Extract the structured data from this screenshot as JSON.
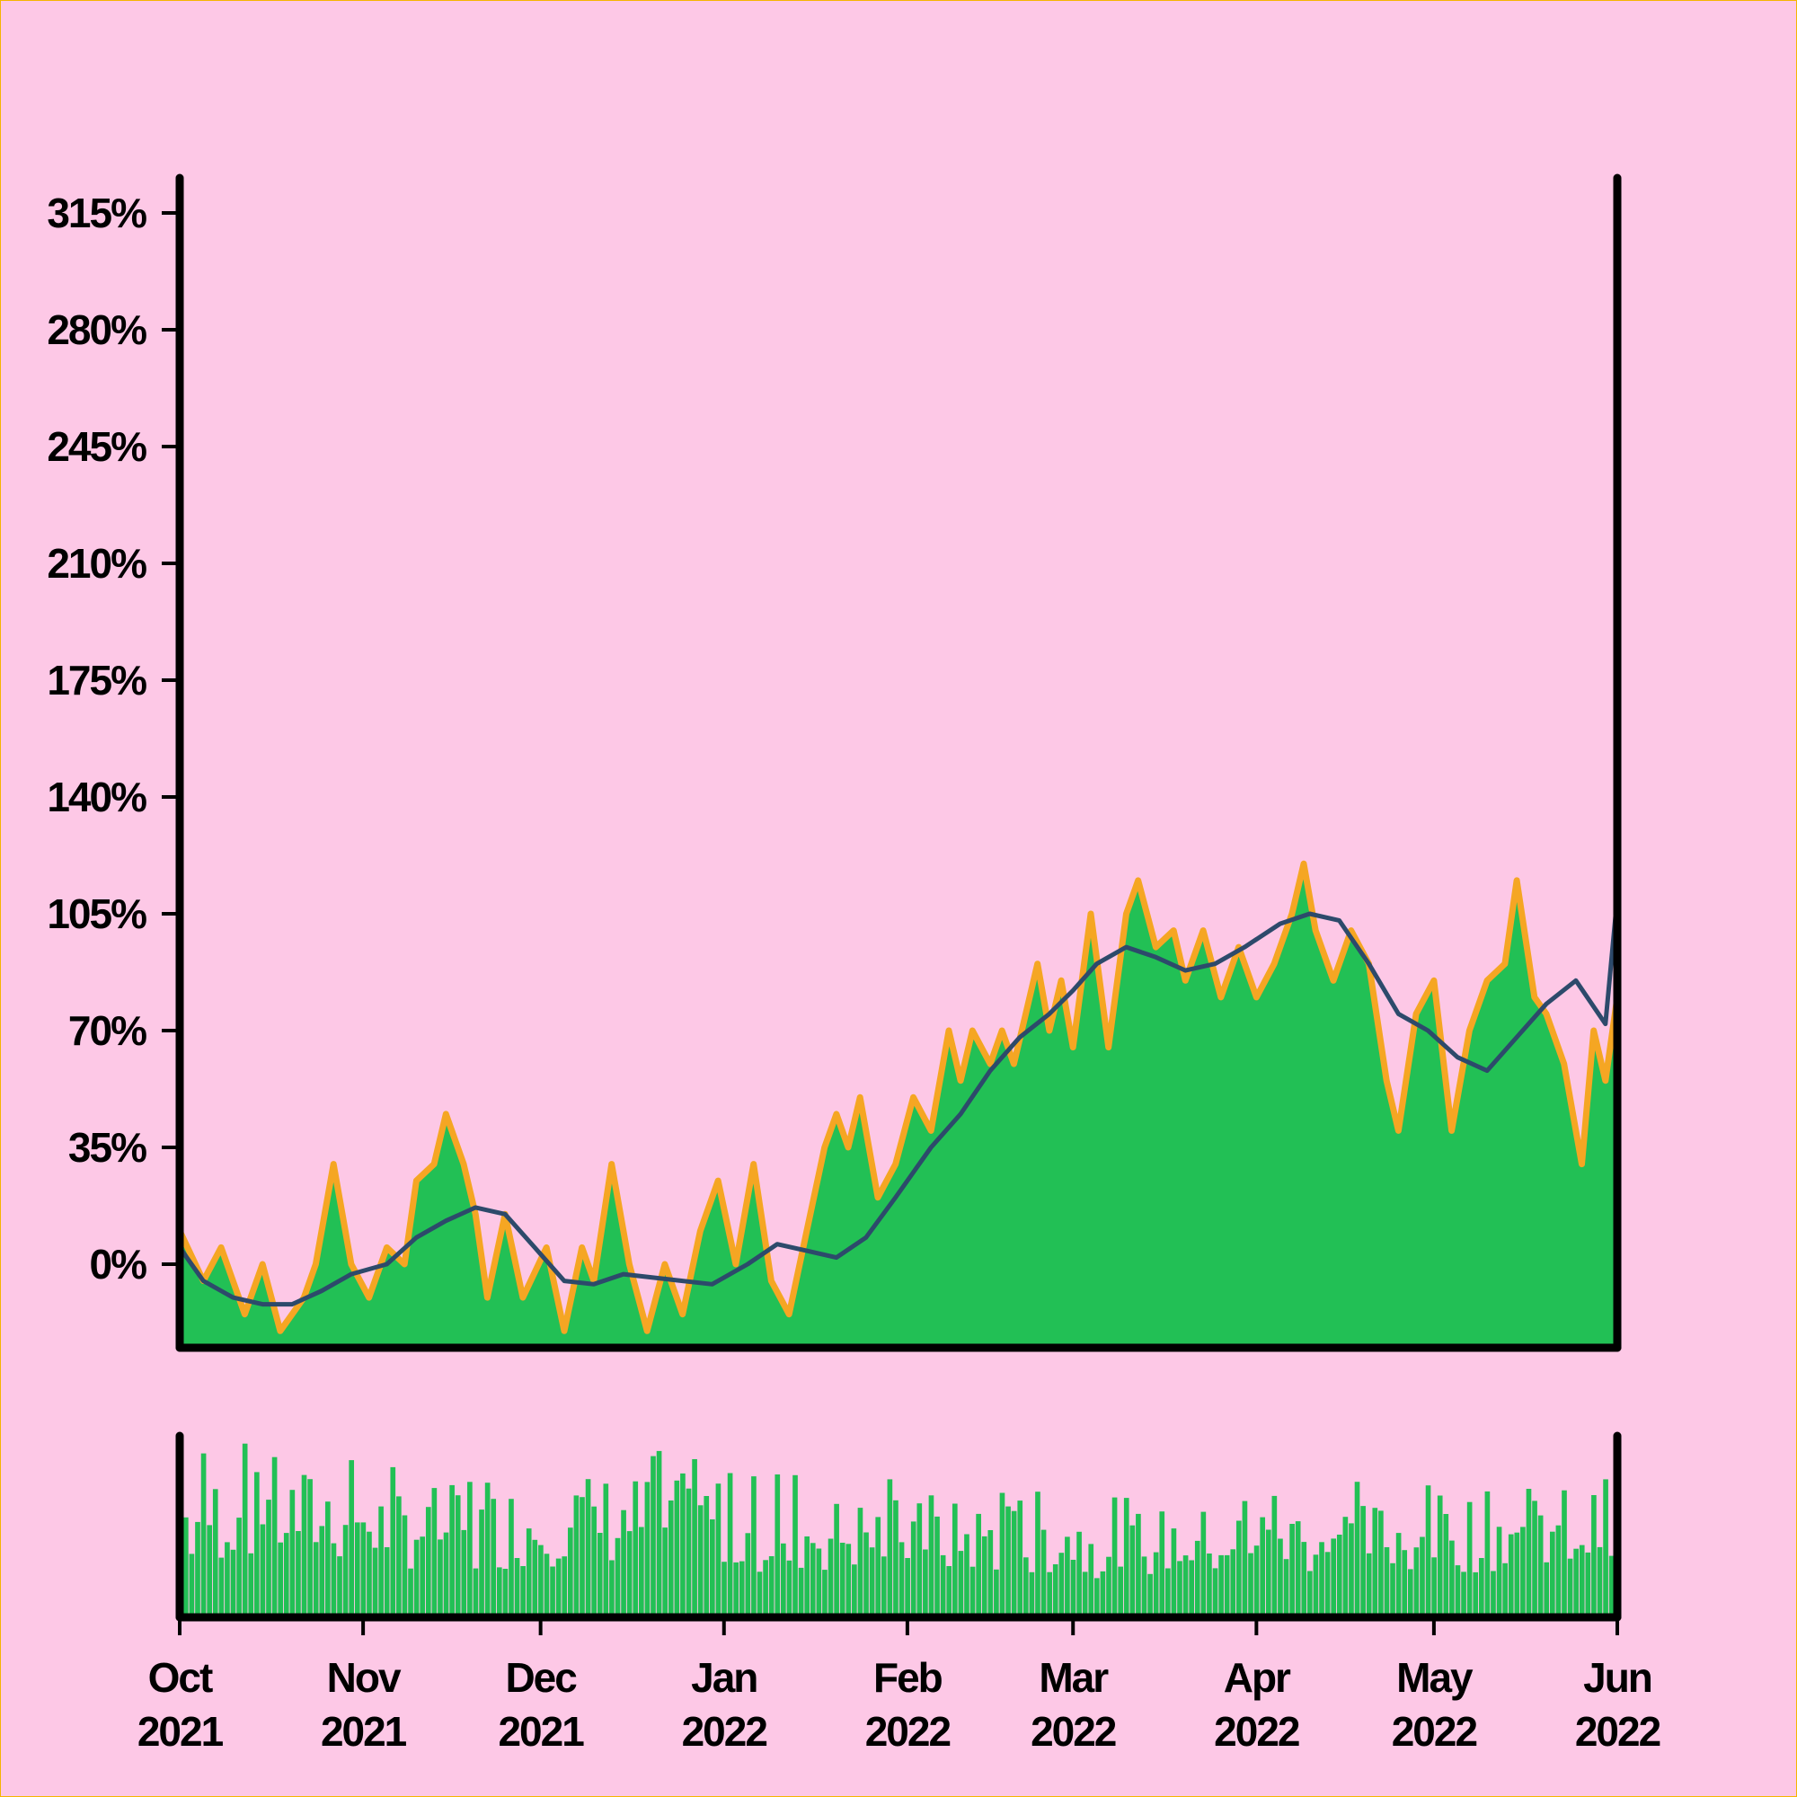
{
  "colors": {
    "background": "#fdc8e6",
    "frame_border": "#f5b400",
    "area_fill": "#22c055",
    "area_edge": "#f5a623",
    "moving_average": "#2d4a6b",
    "volume_bars": "#22c055",
    "axes": "#000000"
  },
  "chart_data": [
    {
      "type": "area",
      "panel": "price",
      "title": "",
      "xlabel": "",
      "ylabel": "",
      "x_range": [
        "2021-10-01",
        "2022-06-01"
      ],
      "ylim": [
        -0.22,
        3.25
      ],
      "y_ticks": [
        0,
        0.35,
        0.7,
        1.05,
        1.4,
        1.75,
        2.1,
        2.45,
        2.8,
        3.15
      ],
      "y_tick_labels": [
        "0%",
        "35%",
        "70%",
        "105%",
        "140%",
        "175%",
        "210%",
        "245%",
        "280%",
        "315%"
      ],
      "x_tick_labels": [
        {
          "month": "Oct",
          "year": "2021"
        },
        {
          "month": "Nov",
          "year": "2021"
        },
        {
          "month": "Dec",
          "year": "2021"
        },
        {
          "month": "Jan",
          "year": "2022"
        },
        {
          "month": "Feb",
          "year": "2022"
        },
        {
          "month": "Mar",
          "year": "2022"
        },
        {
          "month": "Apr",
          "year": "2022"
        },
        {
          "month": "May",
          "year": "2022"
        },
        {
          "month": "Jun",
          "year": "2022"
        }
      ],
      "grid": false,
      "legend": "none",
      "series": [
        {
          "style": "area",
          "points": [
            [
              "2021-10-01",
              0.1
            ],
            [
              "2021-10-05",
              -0.05
            ],
            [
              "2021-10-08",
              0.05
            ],
            [
              "2021-10-12",
              -0.15
            ],
            [
              "2021-10-15",
              0.0
            ],
            [
              "2021-10-18",
              -0.2
            ],
            [
              "2021-10-22",
              -0.1
            ],
            [
              "2021-10-24",
              0.0
            ],
            [
              "2021-10-27",
              0.3
            ],
            [
              "2021-10-30",
              0.0
            ],
            [
              "2021-11-02",
              -0.1
            ],
            [
              "2021-11-05",
              0.05
            ],
            [
              "2021-11-08",
              0.0
            ],
            [
              "2021-11-10",
              0.25
            ],
            [
              "2021-11-13",
              0.3
            ],
            [
              "2021-11-15",
              0.45
            ],
            [
              "2021-11-18",
              0.3
            ],
            [
              "2021-11-20",
              0.15
            ],
            [
              "2021-11-22",
              -0.1
            ],
            [
              "2021-11-25",
              0.15
            ],
            [
              "2021-11-28",
              -0.1
            ],
            [
              "2021-12-02",
              0.05
            ],
            [
              "2021-12-05",
              -0.2
            ],
            [
              "2021-12-08",
              0.05
            ],
            [
              "2021-12-10",
              -0.05
            ],
            [
              "2021-12-13",
              0.3
            ],
            [
              "2021-12-16",
              0.0
            ],
            [
              "2021-12-19",
              -0.2
            ],
            [
              "2021-12-22",
              0.0
            ],
            [
              "2021-12-25",
              -0.15
            ],
            [
              "2021-12-28",
              0.1
            ],
            [
              "2021-12-31",
              0.25
            ],
            [
              "2022-01-03",
              0.0
            ],
            [
              "2022-01-06",
              0.3
            ],
            [
              "2022-01-09",
              -0.05
            ],
            [
              "2022-01-12",
              -0.15
            ],
            [
              "2022-01-15",
              0.1
            ],
            [
              "2022-01-18",
              0.35
            ],
            [
              "2022-01-20",
              0.45
            ],
            [
              "2022-01-22",
              0.35
            ],
            [
              "2022-01-24",
              0.5
            ],
            [
              "2022-01-27",
              0.2
            ],
            [
              "2022-01-30",
              0.3
            ],
            [
              "2022-02-02",
              0.5
            ],
            [
              "2022-02-05",
              0.4
            ],
            [
              "2022-02-08",
              0.7
            ],
            [
              "2022-02-10",
              0.55
            ],
            [
              "2022-02-12",
              0.7
            ],
            [
              "2022-02-15",
              0.6
            ],
            [
              "2022-02-17",
              0.7
            ],
            [
              "2022-02-19",
              0.6
            ],
            [
              "2022-02-21",
              0.75
            ],
            [
              "2022-02-23",
              0.9
            ],
            [
              "2022-02-25",
              0.7
            ],
            [
              "2022-02-27",
              0.85
            ],
            [
              "2022-03-01",
              0.65
            ],
            [
              "2022-03-04",
              1.05
            ],
            [
              "2022-03-07",
              0.65
            ],
            [
              "2022-03-10",
              1.05
            ],
            [
              "2022-03-12",
              1.15
            ],
            [
              "2022-03-15",
              0.95
            ],
            [
              "2022-03-18",
              1.0
            ],
            [
              "2022-03-20",
              0.85
            ],
            [
              "2022-03-23",
              1.0
            ],
            [
              "2022-03-26",
              0.8
            ],
            [
              "2022-03-29",
              0.95
            ],
            [
              "2022-04-01",
              0.8
            ],
            [
              "2022-04-04",
              0.9
            ],
            [
              "2022-04-07",
              1.05
            ],
            [
              "2022-04-09",
              1.2
            ],
            [
              "2022-04-11",
              1.0
            ],
            [
              "2022-04-14",
              0.85
            ],
            [
              "2022-04-17",
              1.0
            ],
            [
              "2022-04-20",
              0.9
            ],
            [
              "2022-04-23",
              0.55
            ],
            [
              "2022-04-25",
              0.4
            ],
            [
              "2022-04-28",
              0.75
            ],
            [
              "2022-05-01",
              0.85
            ],
            [
              "2022-05-04",
              0.4
            ],
            [
              "2022-05-07",
              0.7
            ],
            [
              "2022-05-10",
              0.85
            ],
            [
              "2022-05-13",
              0.9
            ],
            [
              "2022-05-15",
              1.15
            ],
            [
              "2022-05-18",
              0.8
            ],
            [
              "2022-05-20",
              0.75
            ],
            [
              "2022-05-23",
              0.6
            ],
            [
              "2022-05-26",
              0.3
            ],
            [
              "2022-05-28",
              0.7
            ],
            [
              "2022-05-30",
              0.55
            ],
            [
              "2022-06-01",
              0.8
            ]
          ]
        },
        {
          "style": "line",
          "points": [
            [
              "2021-10-01",
              0.05
            ],
            [
              "2021-10-05",
              -0.05
            ],
            [
              "2021-10-10",
              -0.1
            ],
            [
              "2021-10-15",
              -0.12
            ],
            [
              "2021-10-20",
              -0.12
            ],
            [
              "2021-10-25",
              -0.08
            ],
            [
              "2021-10-30",
              -0.03
            ],
            [
              "2021-11-05",
              0.0
            ],
            [
              "2021-11-10",
              0.08
            ],
            [
              "2021-11-15",
              0.13
            ],
            [
              "2021-11-20",
              0.17
            ],
            [
              "2021-11-25",
              0.15
            ],
            [
              "2021-11-30",
              0.05
            ],
            [
              "2021-12-05",
              -0.05
            ],
            [
              "2021-12-10",
              -0.06
            ],
            [
              "2021-12-15",
              -0.03
            ],
            [
              "2021-12-20",
              -0.04
            ],
            [
              "2021-12-25",
              -0.05
            ],
            [
              "2021-12-30",
              -0.06
            ],
            [
              "2022-01-05",
              0.0
            ],
            [
              "2022-01-10",
              0.06
            ],
            [
              "2022-01-15",
              0.04
            ],
            [
              "2022-01-20",
              0.02
            ],
            [
              "2022-01-25",
              0.08
            ],
            [
              "2022-01-30",
              0.2
            ],
            [
              "2022-02-05",
              0.35
            ],
            [
              "2022-02-10",
              0.45
            ],
            [
              "2022-02-15",
              0.58
            ],
            [
              "2022-02-20",
              0.68
            ],
            [
              "2022-02-25",
              0.75
            ],
            [
              "2022-03-01",
              0.82
            ],
            [
              "2022-03-05",
              0.9
            ],
            [
              "2022-03-10",
              0.95
            ],
            [
              "2022-03-15",
              0.92
            ],
            [
              "2022-03-20",
              0.88
            ],
            [
              "2022-03-25",
              0.9
            ],
            [
              "2022-03-30",
              0.95
            ],
            [
              "2022-04-05",
              1.02
            ],
            [
              "2022-04-10",
              1.05
            ],
            [
              "2022-04-15",
              1.03
            ],
            [
              "2022-04-20",
              0.9
            ],
            [
              "2022-04-25",
              0.75
            ],
            [
              "2022-04-30",
              0.7
            ],
            [
              "2022-05-05",
              0.62
            ],
            [
              "2022-05-10",
              0.58
            ],
            [
              "2022-05-15",
              0.68
            ],
            [
              "2022-05-20",
              0.78
            ],
            [
              "2022-05-25",
              0.85
            ],
            [
              "2022-05-30",
              0.72
            ],
            [
              "2022-06-01",
              1.1
            ]
          ]
        }
      ]
    },
    {
      "type": "bar",
      "panel": "volume",
      "title": "",
      "xlabel": "",
      "ylabel": "",
      "x_range": [
        "2021-10-01",
        "2022-06-01"
      ],
      "y_ticks": [],
      "series": [
        {
          "values_by_month": [
            {
              "month": "2021-10",
              "typical": 0.62,
              "peak": 0.98
            },
            {
              "month": "2021-11",
              "typical": 0.55,
              "peak": 0.85
            },
            {
              "month": "2021-12",
              "typical": 0.6,
              "peak": 0.95
            },
            {
              "month": "2022-01",
              "typical": 0.5,
              "peak": 0.85
            },
            {
              "month": "2022-02",
              "typical": 0.48,
              "peak": 0.72
            },
            {
              "month": "2022-03",
              "typical": 0.45,
              "peak": 0.68
            },
            {
              "month": "2022-04",
              "typical": 0.48,
              "peak": 0.78
            },
            {
              "month": "2022-05",
              "typical": 0.52,
              "peak": 0.8
            }
          ]
        }
      ]
    }
  ]
}
